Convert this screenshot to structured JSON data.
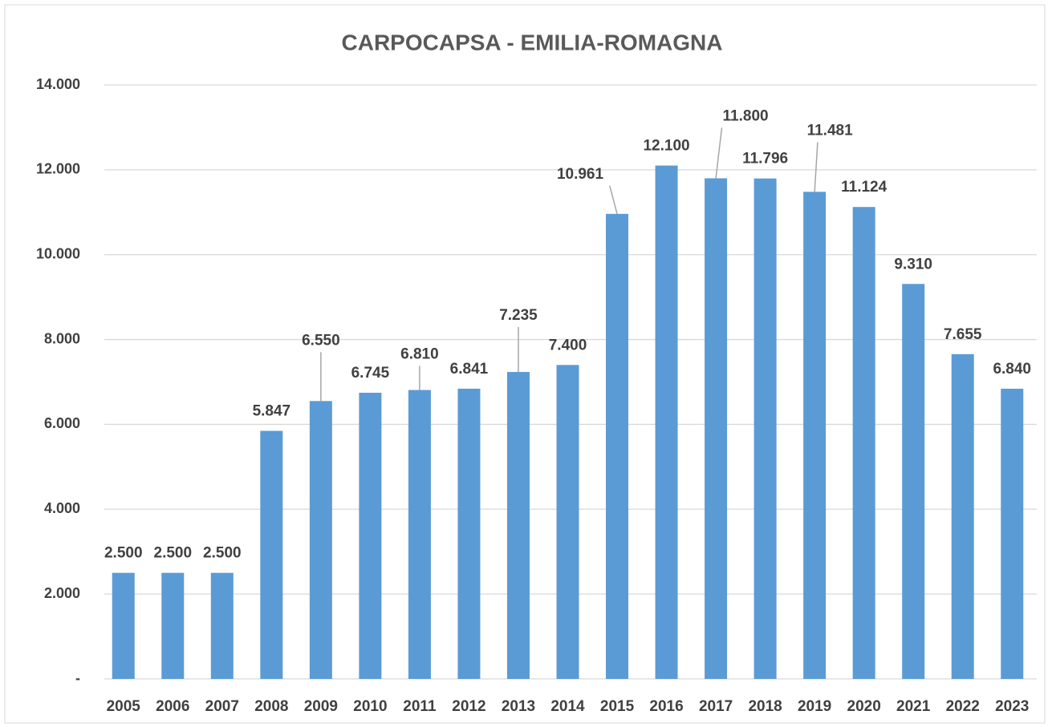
{
  "chart_data": {
    "type": "bar",
    "title": "CARPOCAPSA - EMILIA-ROMAGNA",
    "categories": [
      "2005",
      "2006",
      "2007",
      "2008",
      "2009",
      "2010",
      "2011",
      "2012",
      "2013",
      "2014",
      "2015",
      "2016",
      "2017",
      "2018",
      "2019",
      "2020",
      "2021",
      "2022",
      "2023"
    ],
    "values": [
      2500,
      2500,
      2500,
      5847,
      6550,
      6745,
      6810,
      6841,
      7235,
      7400,
      10961,
      12100,
      11800,
      11796,
      11481,
      11124,
      9310,
      7655,
      6840
    ],
    "value_labels": [
      "2.500",
      "2.500",
      "2.500",
      "5.847",
      "6.550",
      "6.745",
      "6.810",
      "6.841",
      "7.235",
      "7.400",
      "10.961",
      "12.100",
      "11.800",
      "11.796",
      "11.481",
      "11.124",
      "9.310",
      "7.655",
      "6.840"
    ],
    "color": "#5b9bd5",
    "ylim": [
      0,
      14000
    ],
    "yticks": [
      {
        "value": 0,
        "label": "-"
      },
      {
        "value": 2000,
        "label": "2.000"
      },
      {
        "value": 4000,
        "label": "4.000"
      },
      {
        "value": 6000,
        "label": "6.000"
      },
      {
        "value": 8000,
        "label": "8.000"
      },
      {
        "value": 10000,
        "label": "10.000"
      },
      {
        "value": 12000,
        "label": "12.000"
      },
      {
        "value": 14000,
        "label": "14.000"
      }
    ],
    "grid": true
  }
}
